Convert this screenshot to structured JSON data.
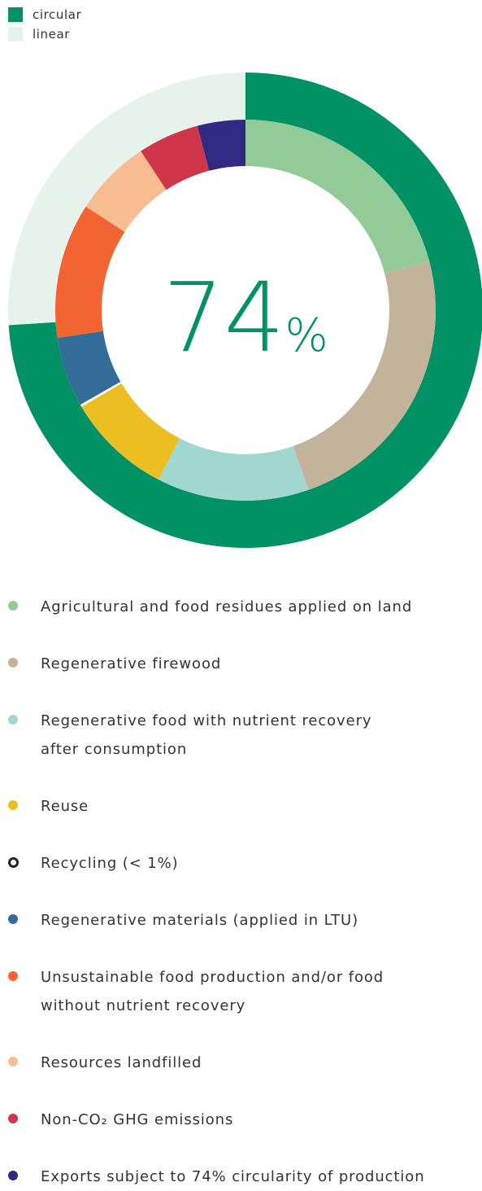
{
  "chart_data": {
    "type": "donut",
    "center_label": "74",
    "center_unit": "%",
    "outer_ring": {
      "series": [
        {
          "name": "circular",
          "value": 74,
          "color": "#009165"
        },
        {
          "name": "linear",
          "value": 26,
          "color": "#e8f2ec"
        }
      ]
    },
    "inner_ring": {
      "series": [
        {
          "name": "Agricultural and food residues applied on land",
          "value": 20.0,
          "color": "#93cb98"
        },
        {
          "name": "Regenerative firewood",
          "value": 22.8,
          "color": "#c2b39a"
        },
        {
          "name": "Regenerative food with nutrient recovery after consumption",
          "value": 12.4,
          "color": "#a0d7cf"
        },
        {
          "name": "Reuse",
          "value": 8.6,
          "color": "#ebbe22"
        },
        {
          "name": "Recycling (< 1%)",
          "value": 0.2,
          "color": "#222222",
          "hollow": true
        },
        {
          "name": "Regenerative materials (applied in LTU)",
          "value": 5.7,
          "color": "#356d99"
        },
        {
          "name": "Unsustainable food production and/or food without nutrient recovery",
          "value": 11.0,
          "color": "#f26432"
        },
        {
          "name": "Resources landfilled",
          "value": 6.3,
          "color": "#f8bc92"
        },
        {
          "name": "Non-CO₂ GHG emissions",
          "value": 5.0,
          "color": "#cf364a"
        },
        {
          "name": "Exports subject to 74% circularity of production",
          "value": 3.9,
          "color": "#302a83"
        }
      ]
    }
  },
  "legend_lines": [
    [
      "Agricultural and food residues applied on land"
    ],
    [
      "Regenerative firewood"
    ],
    [
      "Regenerative food with nutrient recovery",
      "after consumption"
    ],
    [
      "Reuse"
    ],
    [
      "Recycling (< 1%)"
    ],
    [
      "Regenerative materials (applied in LTU)"
    ],
    [
      "Unsustainable food production and/or food",
      "without nutrient recovery"
    ],
    [
      "Resources landfilled"
    ],
    [
      "Non-CO₂ GHG emissions"
    ],
    [
      "Exports subject to 74% circularity of production"
    ]
  ],
  "colors": {
    "accent": "#009165",
    "text": "#333333"
  }
}
